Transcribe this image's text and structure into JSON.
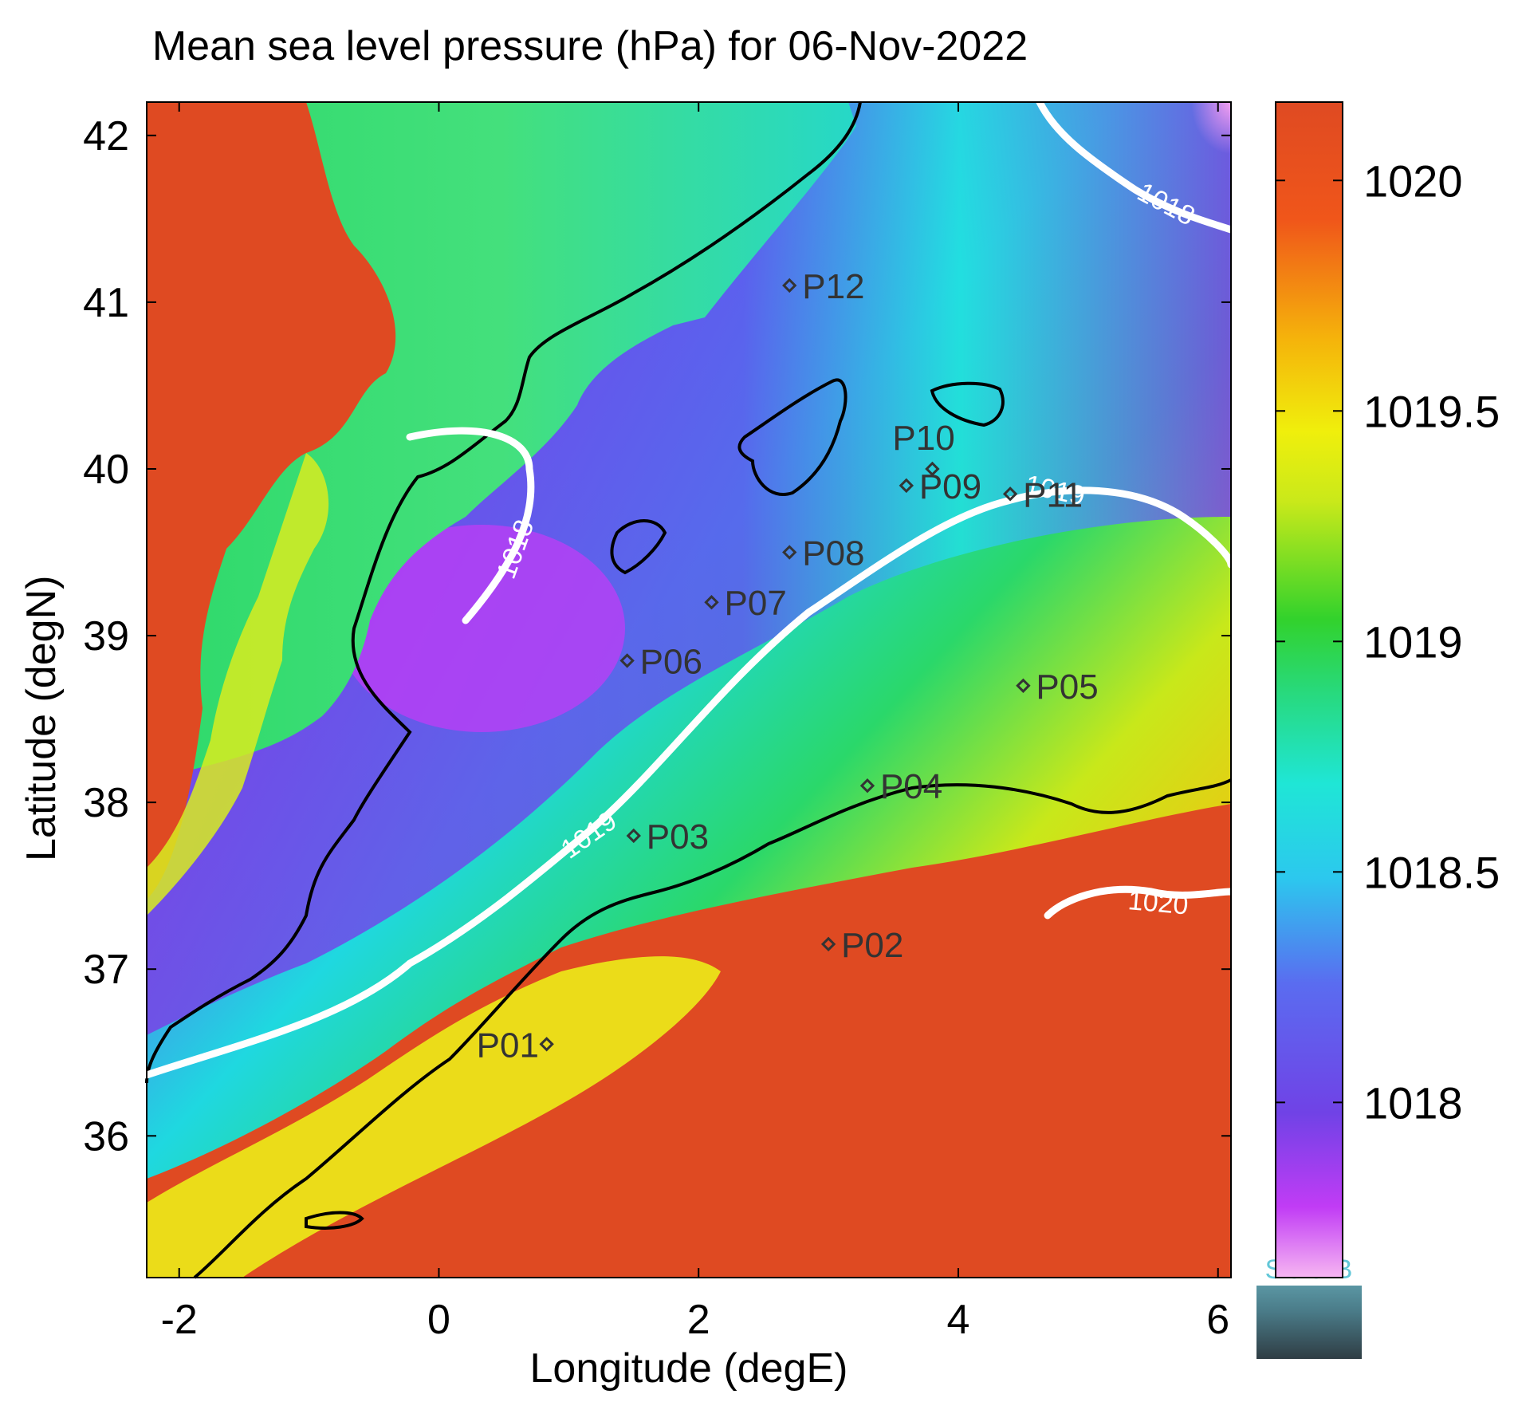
{
  "title": "Mean sea level pressure (hPa) for 06-Nov-2022",
  "xlabel": "Longitude (degE)",
  "ylabel": "Latitude (degN)",
  "x_ticks": [
    "-2",
    "0",
    "2",
    "4",
    "6"
  ],
  "y_ticks": [
    "42",
    "41",
    "40",
    "39",
    "38",
    "37",
    "36"
  ],
  "colorbar": {
    "ticks": [
      "1020",
      "1019.5",
      "1019",
      "1018.5",
      "1018"
    ],
    "colors": [
      "#f6b6f2",
      "#c13cf5",
      "#7042e6",
      "#3a9cf0",
      "#1fe6d6",
      "#28d97a",
      "#32d22c",
      "#c9e91a",
      "#f0ef0c",
      "#f5b20b",
      "#f0561a",
      "#df4a22"
    ]
  },
  "stations": [
    {
      "id": "P01",
      "lon": 0.83,
      "lat": 36.55
    },
    {
      "id": "P02",
      "lon": 3.0,
      "lat": 37.15
    },
    {
      "id": "P03",
      "lon": 1.5,
      "lat": 37.8
    },
    {
      "id": "P04",
      "lon": 3.3,
      "lat": 38.1
    },
    {
      "id": "P05",
      "lon": 4.5,
      "lat": 38.7
    },
    {
      "id": "P06",
      "lon": 1.45,
      "lat": 38.85
    },
    {
      "id": "P07",
      "lon": 2.1,
      "lat": 39.2
    },
    {
      "id": "P08",
      "lon": 2.7,
      "lat": 39.5
    },
    {
      "id": "P09",
      "lon": 3.6,
      "lat": 39.9
    },
    {
      "id": "P10",
      "lon": 3.8,
      "lat": 40.0
    },
    {
      "id": "P11",
      "lon": 4.4,
      "lat": 39.85
    },
    {
      "id": "P12",
      "lon": 2.7,
      "lat": 41.1
    }
  ],
  "contours": [
    {
      "label": "1018",
      "level": 1018
    },
    {
      "label": "1019",
      "level": 1019
    },
    {
      "label": "1020",
      "level": 1020
    }
  ],
  "logo_text": "SOCIB",
  "colors": {
    "land_high": "#df4a22",
    "contour": "#ffffff",
    "coastline": "#000000"
  }
}
